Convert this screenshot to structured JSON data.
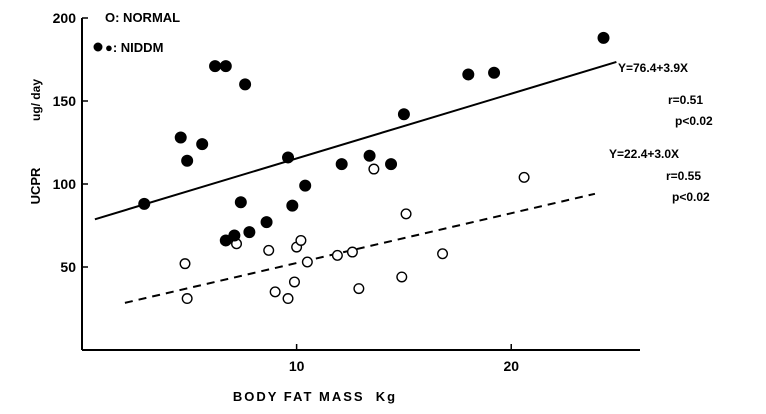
{
  "chart_data": {
    "type": "scatter",
    "title": "",
    "xlabel": "BODY FAT MASS  Kg",
    "ylabel": "UCPR",
    "yunit": "ug/ day",
    "xlim": [
      0,
      26
    ],
    "ylim": [
      0,
      200
    ],
    "xticks": [
      10,
      20
    ],
    "yticks": [
      50,
      100,
      150,
      200
    ],
    "grid": false,
    "legend_position": "top-left",
    "series": [
      {
        "name": "NORMAL",
        "legend_label": "O: NORMAL",
        "marker": "open-circle",
        "points": [
          [
            4.8,
            52
          ],
          [
            4.9,
            31
          ],
          [
            7.2,
            64
          ],
          [
            8.7,
            60
          ],
          [
            9.0,
            35
          ],
          [
            9.6,
            31
          ],
          [
            9.9,
            41
          ],
          [
            10.0,
            62
          ],
          [
            10.2,
            66
          ],
          [
            10.5,
            53
          ],
          [
            11.9,
            57
          ],
          [
            12.6,
            59
          ],
          [
            12.9,
            37
          ],
          [
            13.6,
            109
          ],
          [
            14.9,
            44
          ],
          [
            15.1,
            82
          ],
          [
            16.8,
            58
          ],
          [
            20.6,
            104
          ]
        ],
        "regression": {
          "intercept": 22.4,
          "slope": 3.0,
          "x_range": [
            2.0,
            23.9
          ],
          "style": "dashed"
        },
        "equation": "Y=22.4+3.0X",
        "r": "r=0.55",
        "p": "p<0.02"
      },
      {
        "name": "NIDDM",
        "legend_label": "●: NIDDM",
        "marker": "filled-circle",
        "points": [
          [
            2.9,
            88
          ],
          [
            4.6,
            128
          ],
          [
            4.9,
            114
          ],
          [
            5.6,
            124
          ],
          [
            6.2,
            171
          ],
          [
            6.7,
            171
          ],
          [
            7.6,
            160
          ],
          [
            7.4,
            89
          ],
          [
            6.7,
            66
          ],
          [
            7.1,
            69
          ],
          [
            7.8,
            71
          ],
          [
            8.6,
            77
          ],
          [
            9.6,
            116
          ],
          [
            9.8,
            87
          ],
          [
            10.4,
            99
          ],
          [
            12.1,
            112
          ],
          [
            13.4,
            117
          ],
          [
            14.4,
            112
          ],
          [
            15.0,
            142
          ],
          [
            18.0,
            166
          ],
          [
            19.2,
            167
          ],
          [
            24.3,
            188
          ]
        ],
        "regression": {
          "intercept": 76.4,
          "slope": 3.9,
          "x_range": [
            0.6,
            24.9
          ],
          "style": "solid"
        },
        "equation": "Y=76.4+3.9X",
        "r": "r=0.51",
        "p": "p<0.02"
      }
    ]
  },
  "colors": {
    "ink": "#000000",
    "background": "#ffffff"
  }
}
